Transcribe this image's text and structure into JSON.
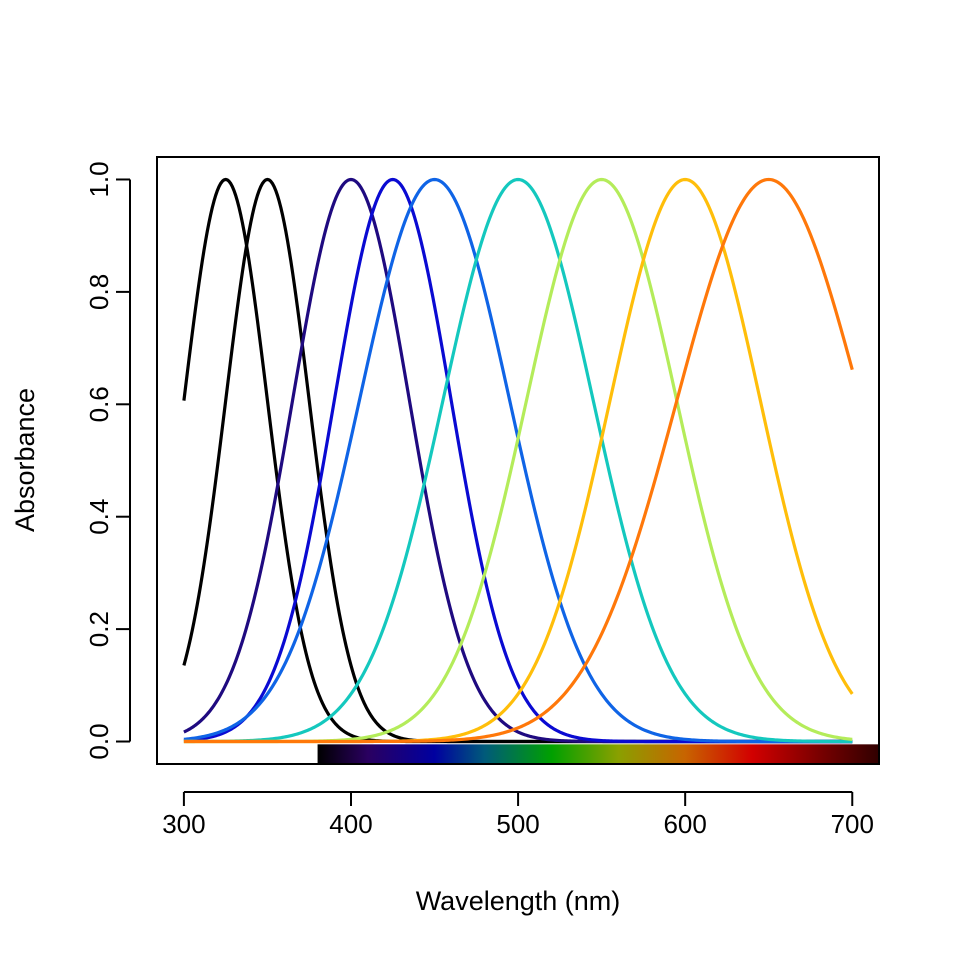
{
  "chart_data": {
    "type": "line",
    "title": "",
    "xlabel": "Wavelength (nm)",
    "ylabel": "Absorbance",
    "xlim": [
      283.9,
      716.0
    ],
    "ylim": [
      -0.04,
      1.04
    ],
    "x_ticks": [
      "300",
      "400",
      "500",
      "600",
      "700"
    ],
    "y_ticks": [
      "0.0",
      "0.2",
      "0.4",
      "0.6",
      "0.8",
      "1.0"
    ],
    "x_range": [
      300,
      700
    ],
    "series": [
      {
        "peak": 325,
        "width": 25,
        "color": "#000000"
      },
      {
        "peak": 350,
        "width": 25,
        "color": "#000000"
      },
      {
        "peak": 400,
        "width": 35,
        "color": "#1f0a80"
      },
      {
        "peak": 425,
        "width": 35,
        "color": "#0a0ad2"
      },
      {
        "peak": 450,
        "width": 45,
        "color": "#0f64e6"
      },
      {
        "peak": 500,
        "width": 45,
        "color": "#14c8be"
      },
      {
        "peak": 550,
        "width": 45,
        "color": "#b4ec5a"
      },
      {
        "peak": 600,
        "width": 45,
        "color": "#ffbe0a"
      },
      {
        "peak": 650,
        "width": 55,
        "color": "#ff780a"
      }
    ],
    "spectrum_bar": {
      "x_range": [
        380,
        716
      ],
      "y_range": [
        -0.04,
        -0.005
      ],
      "stops": [
        {
          "nm": 380,
          "color": "#000000"
        },
        {
          "nm": 410,
          "color": "#2a0060"
        },
        {
          "nm": 450,
          "color": "#0000a0"
        },
        {
          "nm": 480,
          "color": "#005a7a"
        },
        {
          "nm": 520,
          "color": "#00a000"
        },
        {
          "nm": 560,
          "color": "#8aa000"
        },
        {
          "nm": 600,
          "color": "#c86400"
        },
        {
          "nm": 640,
          "color": "#d20000"
        },
        {
          "nm": 680,
          "color": "#7a0000"
        },
        {
          "nm": 716,
          "color": "#300000"
        }
      ]
    },
    "grid": false
  }
}
